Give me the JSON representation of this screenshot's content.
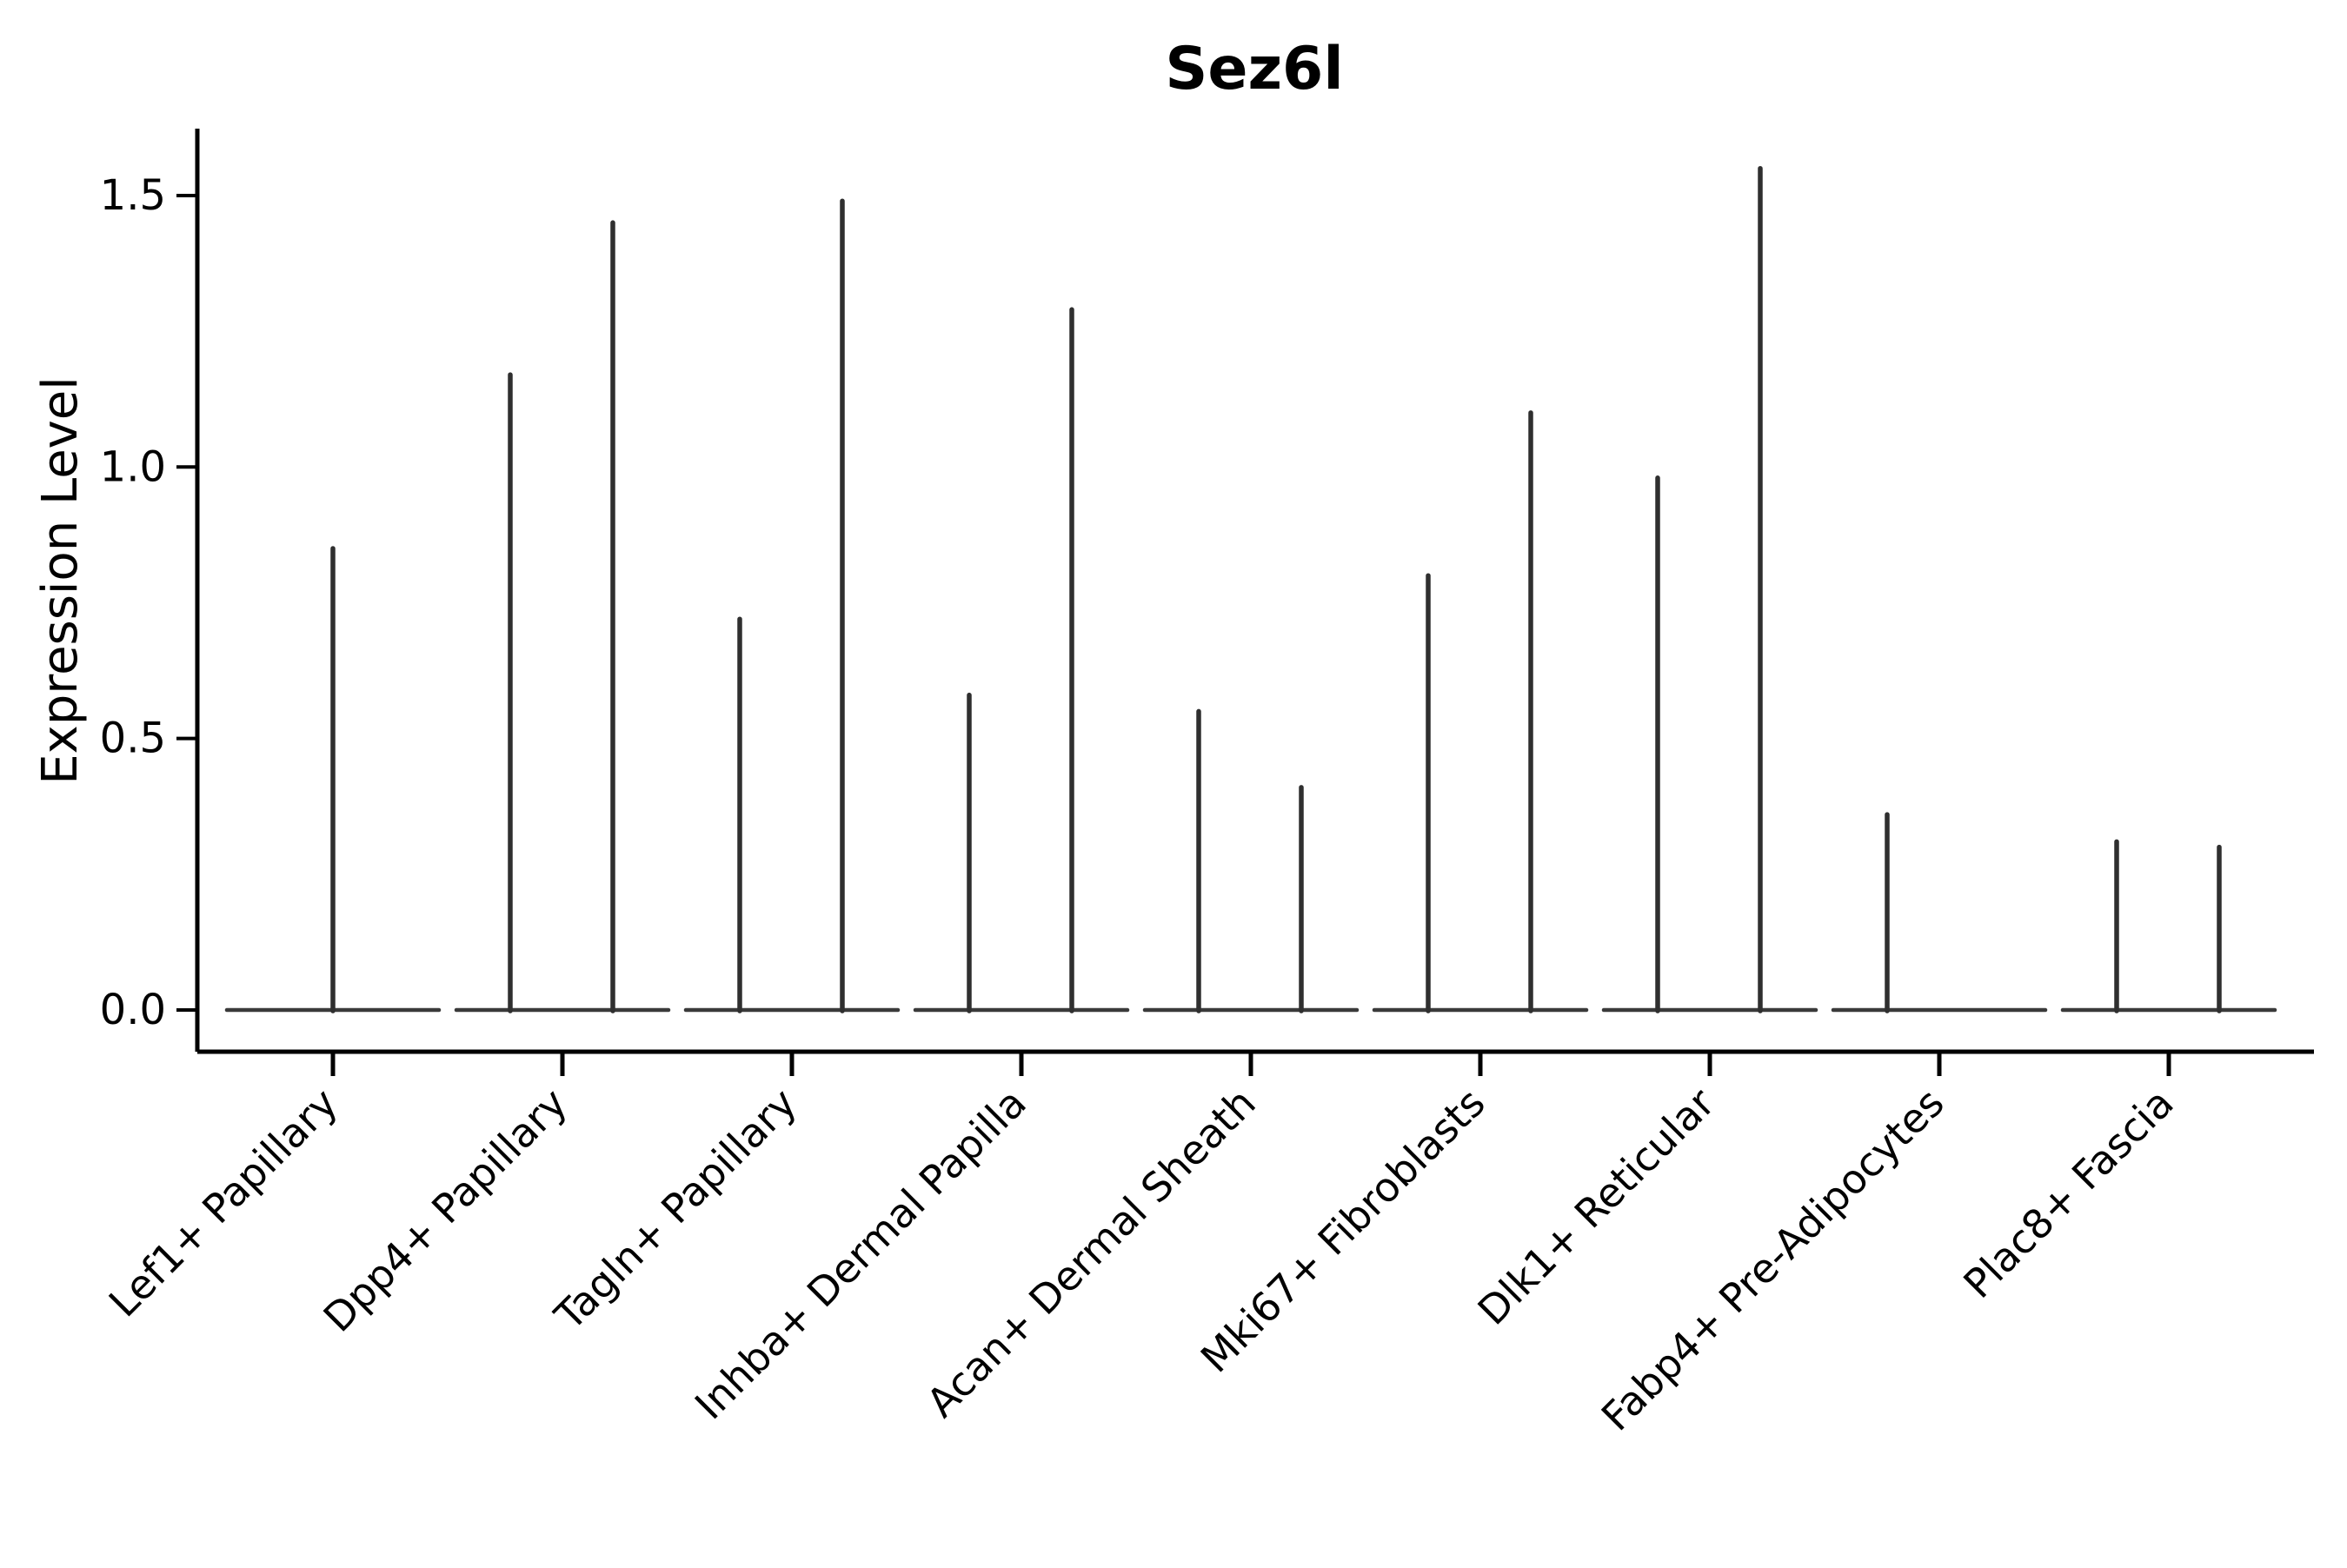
{
  "chart_data": {
    "type": "violin",
    "title": "Sez6l",
    "xlabel": "",
    "ylabel": "Expression Level",
    "ylim": [
      0,
      1.62
    ],
    "grid": false,
    "legend": "none",
    "y_ticks": [
      {
        "value": 0.0,
        "label": "0.0"
      },
      {
        "value": 0.5,
        "label": "0.5"
      },
      {
        "value": 1.0,
        "label": "1.0"
      },
      {
        "value": 1.5,
        "label": "1.5"
      }
    ],
    "categories": [
      "Lef1+ Papillary",
      "Dpp4+ Papillary",
      "Tagln+ Papillary",
      "Inhba+ Dermal Papilla",
      "Acan+ Dermal Sheath",
      "Mki67+ Fibroblasts",
      "Dlk1+ Reticular",
      "Fabp4+ Pre-Adipocytes",
      "Plac8+ Fascia"
    ],
    "violins": [
      {
        "category": "Lef1+ Papillary",
        "spikes": [
          {
            "position": "center",
            "max_expression": 0.85
          }
        ]
      },
      {
        "category": "Dpp4+ Papillary",
        "spikes": [
          {
            "position": "left",
            "max_expression": 1.17
          },
          {
            "position": "right",
            "max_expression": 1.45
          }
        ]
      },
      {
        "category": "Tagln+ Papillary",
        "spikes": [
          {
            "position": "left",
            "max_expression": 0.72
          },
          {
            "position": "right",
            "max_expression": 1.49
          }
        ]
      },
      {
        "category": "Inhba+ Dermal Papilla",
        "spikes": [
          {
            "position": "left",
            "max_expression": 0.58
          },
          {
            "position": "right",
            "max_expression": 1.29
          }
        ]
      },
      {
        "category": "Acan+ Dermal Sheath",
        "spikes": [
          {
            "position": "left",
            "max_expression": 0.55
          },
          {
            "position": "right",
            "max_expression": 0.41
          }
        ]
      },
      {
        "category": "Mki67+ Fibroblasts",
        "spikes": [
          {
            "position": "left",
            "max_expression": 0.8
          },
          {
            "position": "right",
            "max_expression": 1.1
          }
        ]
      },
      {
        "category": "Dlk1+ Reticular",
        "spikes": [
          {
            "position": "left",
            "max_expression": 0.98
          },
          {
            "position": "right",
            "max_expression": 1.55
          }
        ]
      },
      {
        "category": "Fabp4+ Pre-Adipocytes",
        "spikes": [
          {
            "position": "left",
            "max_expression": 0.36
          }
        ]
      },
      {
        "category": "Plac8+ Fascia",
        "spikes": [
          {
            "position": "left",
            "max_expression": 0.31
          },
          {
            "position": "right",
            "max_expression": 0.3
          }
        ]
      }
    ],
    "colors": {
      "violin_stroke": "#2f2f2f",
      "baseline_stroke": "#3a3a3a",
      "axis": "#000000",
      "text": "#000000",
      "background": "#ffffff"
    }
  }
}
